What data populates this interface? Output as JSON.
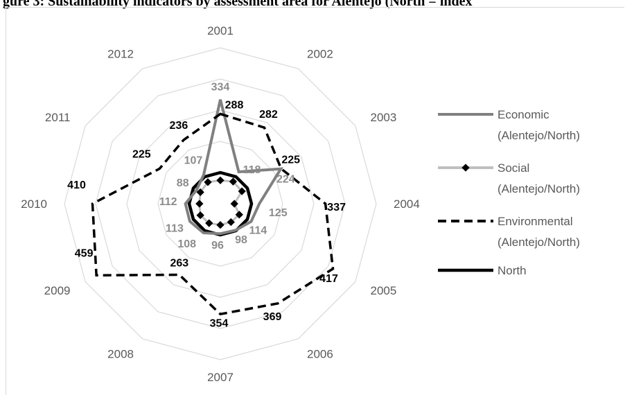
{
  "chart_data": {
    "type": "radar",
    "title": "gure 3: Sustainability indicators by assessment area for Alentejo (North = index",
    "categories": [
      "2001",
      "2002",
      "2003",
      "2004",
      "2005",
      "2006",
      "2007",
      "2008",
      "2009",
      "2010",
      "2011",
      "2012"
    ],
    "rlim": [
      0,
      500
    ],
    "grid": true,
    "legend_position": "right",
    "series": [
      {
        "name": "Economic (Alentejo/North)",
        "values": [
          334,
          118,
          224,
          125,
          114,
          98,
          96,
          108,
          113,
          112,
          88,
          107
        ],
        "color": "#808080",
        "style": "solid"
      },
      {
        "name": "Social (Alentejo/North)",
        "values": [
          75,
          82,
          80,
          45,
          70,
          68,
          68,
          72,
          74,
          67,
          74,
          80
        ],
        "color": "#bfbfbf",
        "style": "solid-diamond"
      },
      {
        "name": "Environmental (Alentejo/North)",
        "values": [
          288,
          282,
          225,
          337,
          417,
          369,
          354,
          263,
          459,
          410,
          225,
          236
        ],
        "color": "#000000",
        "style": "dashed"
      },
      {
        "name": "North",
        "values": [
          100,
          100,
          100,
          100,
          100,
          100,
          100,
          100,
          100,
          100,
          100,
          100
        ],
        "color": "#000000",
        "style": "solid-thick"
      }
    ]
  }
}
